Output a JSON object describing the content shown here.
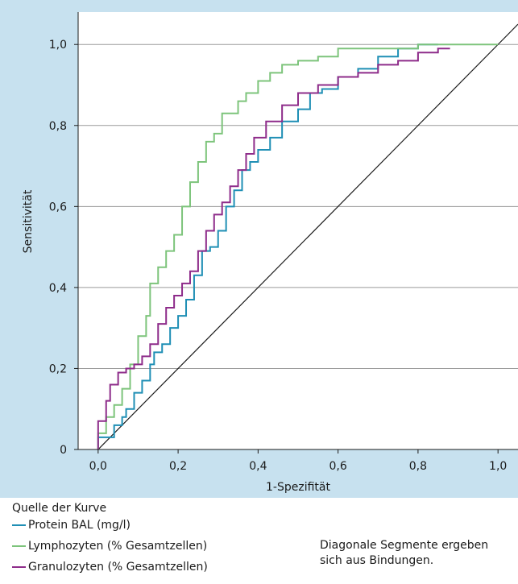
{
  "chart_data": {
    "type": "line",
    "xlabel": "1-Spezifität",
    "ylabel": "Sensitivität",
    "xlim": [
      -0.05,
      1.05
    ],
    "ylim": [
      0,
      1.08
    ],
    "x_ticks": [
      0.0,
      0.2,
      0.4,
      0.6,
      0.8,
      1.0
    ],
    "x_tick_labels": [
      "0,0",
      "0,2",
      "0,4",
      "0,6",
      "0,8",
      "1,0"
    ],
    "y_ticks": [
      0,
      0.2,
      0.4,
      0.6,
      0.8,
      1.0
    ],
    "y_tick_labels": [
      "0",
      "0,2",
      "0,4",
      "0,6",
      "0,8",
      "1,0"
    ],
    "grid": "horizontal",
    "reference_line": {
      "x": [
        0,
        1.05
      ],
      "y": [
        0,
        1.05
      ],
      "color": "#1a1a1a"
    },
    "series": [
      {
        "name": "Protein BAL (mg/l)",
        "color": "#1f8fb5",
        "x": [
          0.0,
          0.01,
          0.02,
          0.04,
          0.06,
          0.07,
          0.09,
          0.11,
          0.13,
          0.14,
          0.16,
          0.18,
          0.2,
          0.22,
          0.24,
          0.26,
          0.28,
          0.3,
          0.32,
          0.34,
          0.36,
          0.38,
          0.4,
          0.43,
          0.46,
          0.5,
          0.53,
          0.56,
          0.6,
          0.65,
          0.7,
          0.75,
          0.8,
          0.85
        ],
        "y": [
          0.0,
          0.03,
          0.03,
          0.03,
          0.06,
          0.08,
          0.1,
          0.14,
          0.17,
          0.21,
          0.24,
          0.26,
          0.3,
          0.33,
          0.37,
          0.43,
          0.49,
          0.5,
          0.54,
          0.6,
          0.64,
          0.69,
          0.71,
          0.74,
          0.77,
          0.81,
          0.84,
          0.88,
          0.89,
          0.92,
          0.94,
          0.97,
          0.99,
          1.0
        ]
      },
      {
        "name": "Lymphozyten (% Gesamtzellen)",
        "color": "#7dc47b",
        "x": [
          0.0,
          0.02,
          0.04,
          0.06,
          0.08,
          0.1,
          0.12,
          0.13,
          0.15,
          0.17,
          0.19,
          0.21,
          0.23,
          0.25,
          0.27,
          0.29,
          0.31,
          0.33,
          0.35,
          0.37,
          0.4,
          0.43,
          0.46,
          0.5,
          0.55,
          0.6,
          0.7,
          0.8,
          0.9,
          1.0
        ],
        "y": [
          0.0,
          0.04,
          0.08,
          0.11,
          0.15,
          0.21,
          0.28,
          0.33,
          0.41,
          0.45,
          0.49,
          0.53,
          0.6,
          0.66,
          0.71,
          0.76,
          0.78,
          0.83,
          0.83,
          0.86,
          0.88,
          0.91,
          0.93,
          0.95,
          0.96,
          0.97,
          0.99,
          0.99,
          1.0,
          1.0
        ]
      },
      {
        "name": "Granulozyten (% Gesamtzellen)",
        "color": "#8e2c8a",
        "x": [
          0.0,
          0.02,
          0.03,
          0.05,
          0.07,
          0.09,
          0.11,
          0.13,
          0.15,
          0.17,
          0.19,
          0.21,
          0.23,
          0.25,
          0.27,
          0.29,
          0.31,
          0.33,
          0.35,
          0.37,
          0.39,
          0.42,
          0.46,
          0.5,
          0.55,
          0.6,
          0.65,
          0.7,
          0.75,
          0.8,
          0.85,
          0.88
        ],
        "y": [
          0.0,
          0.07,
          0.12,
          0.16,
          0.19,
          0.2,
          0.21,
          0.23,
          0.26,
          0.31,
          0.35,
          0.38,
          0.41,
          0.44,
          0.49,
          0.54,
          0.58,
          0.61,
          0.65,
          0.69,
          0.73,
          0.77,
          0.81,
          0.85,
          0.88,
          0.9,
          0.92,
          0.93,
          0.95,
          0.96,
          0.98,
          0.99
        ]
      }
    ]
  },
  "legend": {
    "title": "Quelle der Kurve",
    "items": [
      {
        "label": "Protein BAL (mg/l)",
        "color": "#1f8fb5"
      },
      {
        "label": "Lymphozyten (% Gesamtzellen)",
        "color": "#7dc47b"
      },
      {
        "label": "Granulozyten (% Gesamtzellen)",
        "color": "#8e2c8a"
      }
    ]
  },
  "footnote": "Diagonale Segmente ergeben sich aus Bindungen."
}
